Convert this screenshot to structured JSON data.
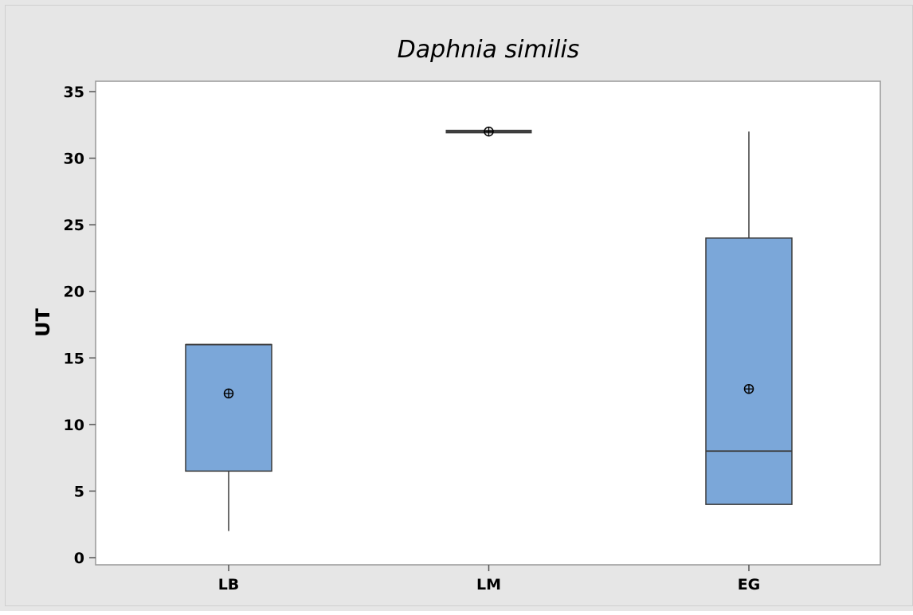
{
  "chart_data": {
    "type": "boxplot",
    "title": "Daphnia similis",
    "xlabel": "",
    "ylabel": "UT",
    "ylim": [
      0,
      35
    ],
    "yticks": [
      0,
      5,
      10,
      15,
      20,
      25,
      30,
      35
    ],
    "categories": [
      "LB",
      "LM",
      "EG"
    ],
    "boxes": [
      {
        "category": "LB",
        "whisker_low": 2,
        "q1": 6.5,
        "median": 16,
        "q3": 16,
        "whisker_high": 16,
        "mean": 12.33
      },
      {
        "category": "LM",
        "whisker_low": 32,
        "q1": 32,
        "median": 32,
        "q3": 32,
        "whisker_high": 32,
        "mean": 32
      },
      {
        "category": "EG",
        "whisker_low": 4,
        "q1": 4,
        "median": 8,
        "q3": 24,
        "whisker_high": 32,
        "mean": 12.67
      }
    ],
    "grid": false,
    "colors": {
      "box_fill": "#7ba7d9",
      "box_stroke": "#3a3a3a",
      "outer_background": "#e6e6e6",
      "plot_background": "#ffffff"
    }
  }
}
